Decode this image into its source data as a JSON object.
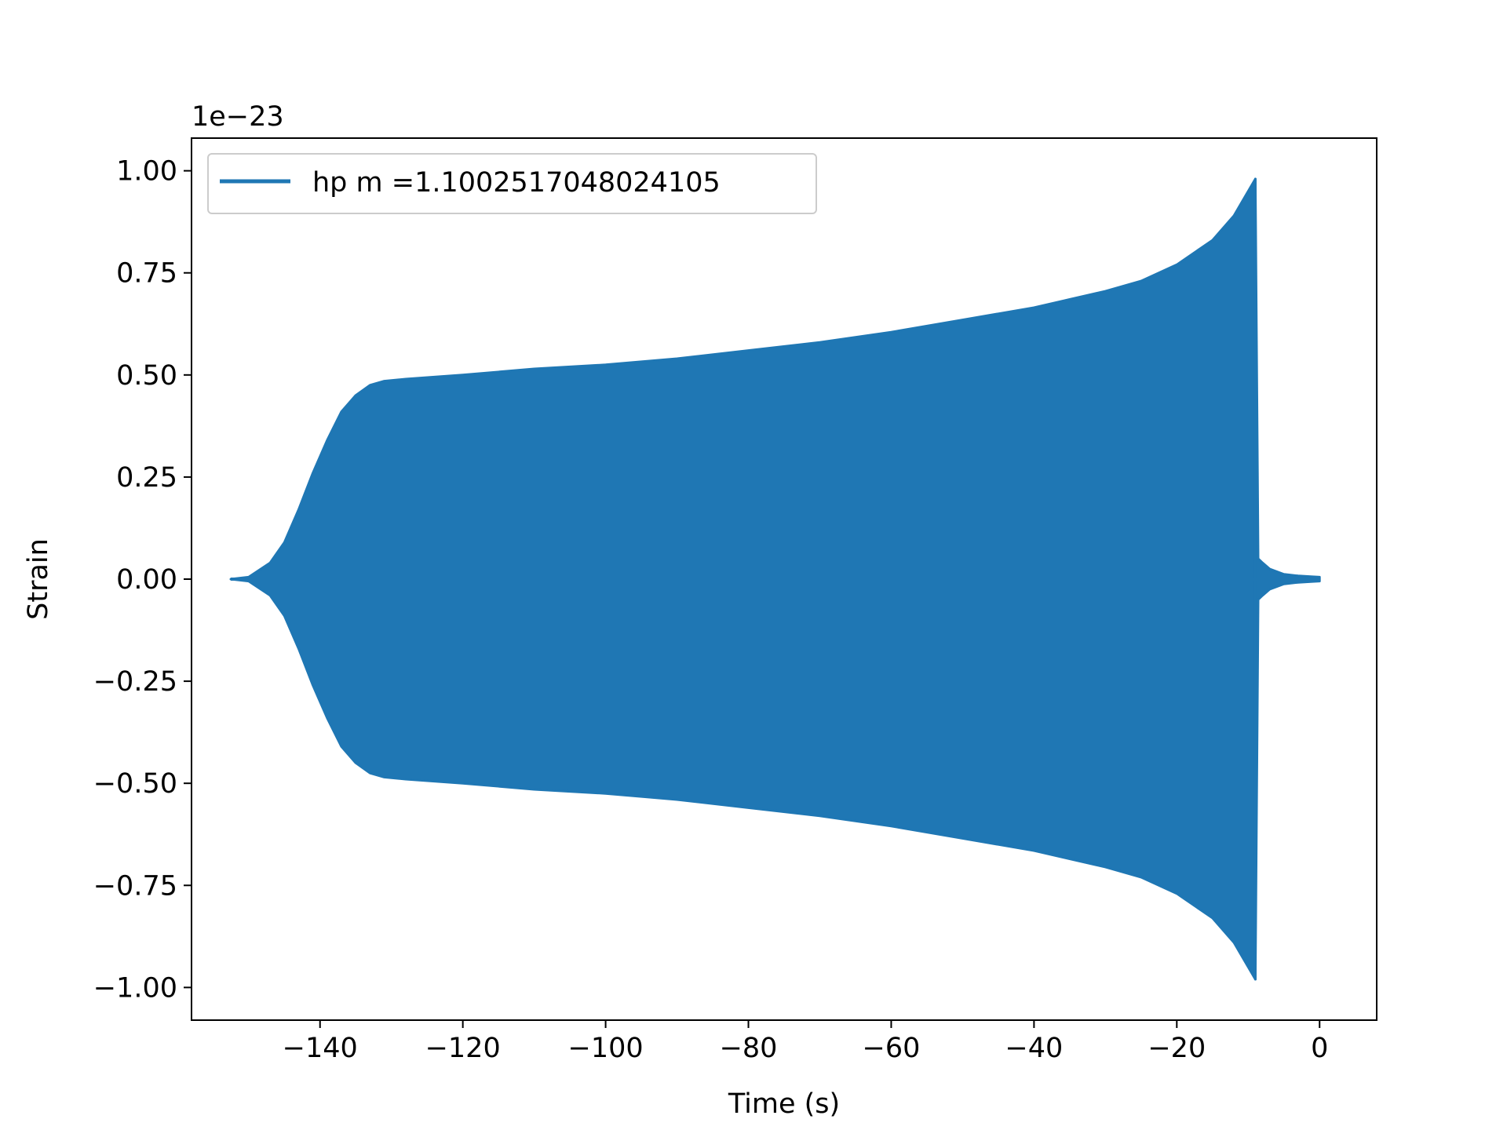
{
  "chart_data": {
    "type": "line",
    "title": "",
    "xlabel": "Time (s)",
    "ylabel": "Strain",
    "y_offset_text": "1e−23",
    "xlim": [
      -158,
      8
    ],
    "ylim": [
      -1.08,
      1.08
    ],
    "xticks": [
      -140,
      -120,
      -100,
      -80,
      -60,
      -40,
      -20,
      0
    ],
    "xtick_labels": [
      "−140",
      "−120",
      "−100",
      "−80",
      "−60",
      "−40",
      "−20",
      "0"
    ],
    "yticks": [
      1.0,
      0.75,
      0.5,
      0.25,
      0.0,
      -0.25,
      -0.5,
      -0.75,
      -1.0
    ],
    "ytick_labels": [
      "1.00",
      "0.75",
      "0.50",
      "0.25",
      "0.00",
      "−0.25",
      "−0.50",
      "−0.75",
      "−1.00"
    ],
    "grid": false,
    "legend": {
      "placement": "top-left"
    },
    "series": [
      {
        "name": "hp m =1.1002517048024105",
        "color": "#1f77b4",
        "envelope_upper": {
          "x": [
            -152.5,
            -150,
            -147,
            -145,
            -143,
            -141,
            -139,
            -137,
            -135,
            -133,
            -131,
            -128,
            -120,
            -110,
            -100,
            -90,
            -80,
            -70,
            -60,
            -50,
            -40,
            -35,
            -30,
            -25,
            -20,
            -15,
            -12,
            -10,
            -9
          ],
          "y": [
            0.0,
            0.005,
            0.04,
            0.09,
            0.17,
            0.26,
            0.34,
            0.41,
            0.45,
            0.475,
            0.485,
            0.49,
            0.5,
            0.515,
            0.525,
            0.54,
            0.56,
            0.58,
            0.605,
            0.635,
            0.665,
            0.685,
            0.705,
            0.73,
            0.77,
            0.83,
            0.89,
            0.95,
            0.98
          ]
        },
        "envelope_lower": {
          "x": [
            -152.5,
            -150,
            -147,
            -145,
            -143,
            -141,
            -139,
            -137,
            -135,
            -133,
            -131,
            -128,
            -120,
            -110,
            -100,
            -90,
            -80,
            -70,
            -60,
            -50,
            -40,
            -35,
            -30,
            -25,
            -20,
            -15,
            -12,
            -10,
            -9
          ],
          "y": [
            0.0,
            -0.005,
            -0.04,
            -0.09,
            -0.17,
            -0.26,
            -0.34,
            -0.41,
            -0.45,
            -0.475,
            -0.485,
            -0.49,
            -0.5,
            -0.515,
            -0.525,
            -0.54,
            -0.56,
            -0.58,
            -0.605,
            -0.635,
            -0.665,
            -0.685,
            -0.705,
            -0.73,
            -0.77,
            -0.83,
            -0.89,
            -0.95,
            -0.98
          ]
        },
        "ringdown": {
          "x": [
            -9,
            -8.6,
            -8,
            -7,
            -5,
            -3,
            -1,
            0
          ],
          "y": [
            0.98,
            0.05,
            0.04,
            0.025,
            0.012,
            0.008,
            0.006,
            0.005
          ]
        }
      }
    ]
  }
}
